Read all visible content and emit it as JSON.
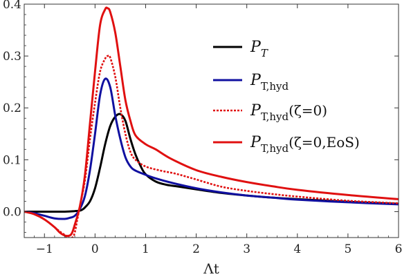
{
  "chart_data": {
    "type": "line",
    "xlabel": "Λt",
    "ylabel": "",
    "xlim": [
      -1.4,
      6
    ],
    "ylim": [
      -0.05,
      0.4
    ],
    "x_ticks": [
      -1,
      0,
      1,
      2,
      3,
      4,
      5,
      6
    ],
    "y_ticks": [
      0.0,
      0.1,
      0.2,
      0.3,
      0.4
    ],
    "x_tick_labels": [
      "−1",
      "0",
      "1",
      "2",
      "3",
      "4",
      "5",
      "6"
    ],
    "y_tick_labels": [
      "0.0",
      "0.1",
      "0.2",
      "0.3",
      "0.4"
    ],
    "grid": false,
    "legend_position": "top-right",
    "series": [
      {
        "name": "P_T",
        "legend": {
          "base": "P",
          "sub": "T",
          "paren": ""
        },
        "color": "#000000",
        "dash": "solid",
        "points": [
          [
            -1.4,
            0.0
          ],
          [
            -1.0,
            0.0
          ],
          [
            -0.6,
            0.0
          ],
          [
            -0.4,
            0.001
          ],
          [
            -0.3,
            0.002
          ],
          [
            -0.25,
            0.004
          ],
          [
            -0.2,
            0.008
          ],
          [
            -0.1,
            0.02
          ],
          [
            0.0,
            0.045
          ],
          [
            0.1,
            0.085
          ],
          [
            0.2,
            0.13
          ],
          [
            0.3,
            0.165
          ],
          [
            0.4,
            0.183
          ],
          [
            0.5,
            0.188
          ],
          [
            0.6,
            0.175
          ],
          [
            0.7,
            0.14
          ],
          [
            0.8,
            0.11
          ],
          [
            0.9,
            0.088
          ],
          [
            1.0,
            0.072
          ],
          [
            1.2,
            0.058
          ],
          [
            1.4,
            0.052
          ],
          [
            1.6,
            0.049
          ],
          [
            2.0,
            0.043
          ],
          [
            2.5,
            0.036
          ],
          [
            3.0,
            0.031
          ],
          [
            3.5,
            0.027
          ],
          [
            4.0,
            0.024
          ],
          [
            5.0,
            0.019
          ],
          [
            6.0,
            0.015
          ]
        ]
      },
      {
        "name": "P_T,hyd",
        "legend": {
          "base": "P",
          "sub": "T,hyd",
          "paren": ""
        },
        "color": "#1010a0",
        "dash": "solid",
        "points": [
          [
            -1.4,
            0.0
          ],
          [
            -1.2,
            -0.003
          ],
          [
            -1.0,
            -0.008
          ],
          [
            -0.8,
            -0.013
          ],
          [
            -0.6,
            -0.014
          ],
          [
            -0.5,
            -0.012
          ],
          [
            -0.4,
            -0.008
          ],
          [
            -0.3,
            0.005
          ],
          [
            -0.2,
            0.03
          ],
          [
            -0.1,
            0.08
          ],
          [
            0.0,
            0.15
          ],
          [
            0.1,
            0.225
          ],
          [
            0.2,
            0.256
          ],
          [
            0.3,
            0.24
          ],
          [
            0.4,
            0.185
          ],
          [
            0.5,
            0.14
          ],
          [
            0.6,
            0.105
          ],
          [
            0.7,
            0.087
          ],
          [
            0.8,
            0.079
          ],
          [
            1.0,
            0.071
          ],
          [
            1.2,
            0.064
          ],
          [
            1.5,
            0.056
          ],
          [
            2.0,
            0.045
          ],
          [
            2.5,
            0.037
          ],
          [
            3.0,
            0.031
          ],
          [
            3.5,
            0.027
          ],
          [
            4.0,
            0.023
          ],
          [
            5.0,
            0.018
          ],
          [
            6.0,
            0.014
          ]
        ]
      },
      {
        "name": "P_T,hyd(ζ=0)",
        "legend": {
          "base": "P",
          "sub": "T,hyd",
          "paren": "ζ=0"
        },
        "color": "#e01010",
        "dash": "dashed",
        "points": [
          [
            -1.4,
            0.0
          ],
          [
            -1.2,
            -0.005
          ],
          [
            -1.0,
            -0.015
          ],
          [
            -0.8,
            -0.03
          ],
          [
            -0.7,
            -0.038
          ],
          [
            -0.6,
            -0.045
          ],
          [
            -0.55,
            -0.05
          ],
          [
            -0.45,
            -0.05
          ],
          [
            -0.4,
            -0.04
          ],
          [
            -0.35,
            -0.015
          ],
          [
            -0.3,
            0.01
          ],
          [
            -0.2,
            0.06
          ],
          [
            -0.1,
            0.14
          ],
          [
            0.0,
            0.21
          ],
          [
            0.1,
            0.27
          ],
          [
            0.2,
            0.295
          ],
          [
            0.25,
            0.3
          ],
          [
            0.3,
            0.297
          ],
          [
            0.4,
            0.26
          ],
          [
            0.5,
            0.2
          ],
          [
            0.6,
            0.15
          ],
          [
            0.7,
            0.115
          ],
          [
            0.8,
            0.1
          ],
          [
            1.0,
            0.087
          ],
          [
            1.3,
            0.079
          ],
          [
            1.6,
            0.073
          ],
          [
            2.0,
            0.062
          ],
          [
            2.5,
            0.048
          ],
          [
            3.0,
            0.04
          ],
          [
            3.5,
            0.034
          ],
          [
            4.0,
            0.029
          ],
          [
            5.0,
            0.021
          ],
          [
            6.0,
            0.016
          ]
        ]
      },
      {
        "name": "P_T,hyd(ζ=0,EoS)",
        "legend": {
          "base": "P",
          "sub": "T,hyd",
          "paren": "ζ=0,EoS"
        },
        "color": "#e01010",
        "dash": "solid",
        "points": [
          [
            -1.4,
            0.0
          ],
          [
            -1.2,
            -0.005
          ],
          [
            -1.0,
            -0.015
          ],
          [
            -0.8,
            -0.03
          ],
          [
            -0.7,
            -0.04
          ],
          [
            -0.6,
            -0.046
          ],
          [
            -0.5,
            -0.046
          ],
          [
            -0.45,
            -0.04
          ],
          [
            -0.4,
            -0.025
          ],
          [
            -0.3,
            0.01
          ],
          [
            -0.2,
            0.07
          ],
          [
            -0.1,
            0.17
          ],
          [
            0.0,
            0.27
          ],
          [
            0.1,
            0.36
          ],
          [
            0.2,
            0.39
          ],
          [
            0.25,
            0.392
          ],
          [
            0.3,
            0.385
          ],
          [
            0.4,
            0.345
          ],
          [
            0.5,
            0.28
          ],
          [
            0.6,
            0.215
          ],
          [
            0.7,
            0.175
          ],
          [
            0.8,
            0.147
          ],
          [
            1.0,
            0.13
          ],
          [
            1.2,
            0.12
          ],
          [
            1.5,
            0.102
          ],
          [
            2.0,
            0.08
          ],
          [
            2.5,
            0.067
          ],
          [
            3.0,
            0.057
          ],
          [
            3.5,
            0.049
          ],
          [
            4.0,
            0.042
          ],
          [
            5.0,
            0.032
          ],
          [
            6.0,
            0.024
          ]
        ]
      }
    ]
  }
}
